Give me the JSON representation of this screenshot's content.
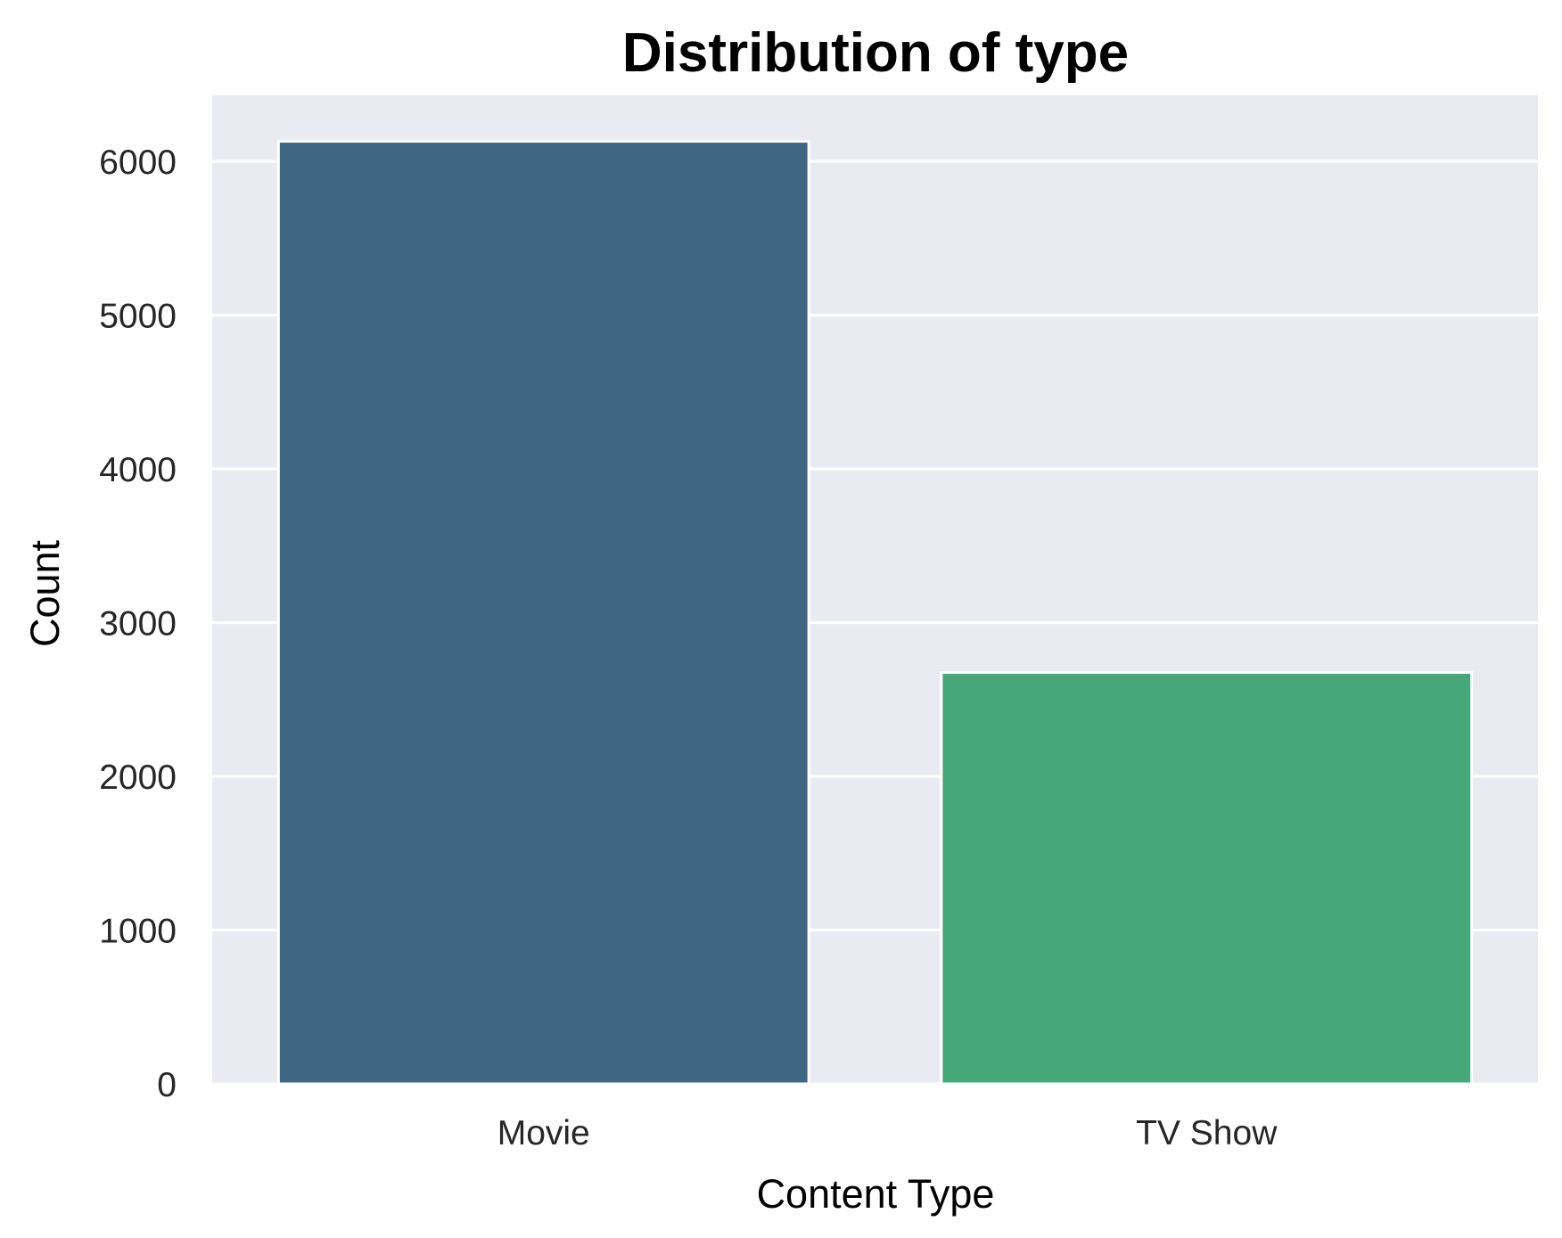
{
  "chart_data": {
    "type": "bar",
    "title": "Distribution of type",
    "xlabel": "Content Type",
    "ylabel": "Count",
    "categories": [
      "Movie",
      "TV Show"
    ],
    "values": [
      6131,
      2676
    ],
    "colors": [
      "#3e6582",
      "#46a779"
    ],
    "plot_background": "#eaeaf2",
    "grid": true,
    "ylim": [
      0,
      6430
    ],
    "yticks": [
      0,
      1000,
      2000,
      3000,
      4000,
      5000,
      6000
    ],
    "ytick_labels": [
      "0",
      "1000",
      "2000",
      "3000",
      "4000",
      "5000",
      "6000"
    ]
  }
}
